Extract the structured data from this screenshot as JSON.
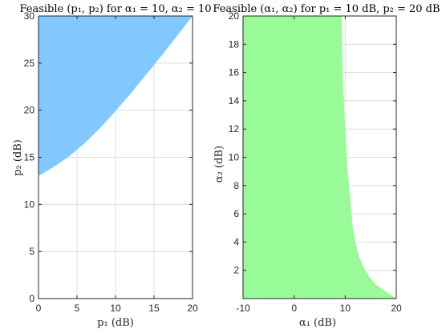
{
  "chart_data": [
    {
      "type": "area",
      "title": "Feasible (p₁, p₂) for α₁ = 10, α₂ = 10",
      "xlabel": "p₁ (dB)",
      "ylabel": "p₂ (dB)",
      "xlim": [
        0,
        20
      ],
      "ylim": [
        0,
        30
      ],
      "xticks": [
        0,
        5,
        10,
        15,
        20
      ],
      "yticks": [
        0,
        5,
        10,
        15,
        20,
        25,
        30
      ],
      "grid": true,
      "fill_color": "#80c8ff",
      "region": "above boundary",
      "boundary": {
        "x": [
          0,
          2,
          4,
          6,
          8,
          10,
          12,
          14,
          16,
          18,
          20
        ],
        "y": [
          13.0,
          14.0,
          15.1,
          16.5,
          18.1,
          19.9,
          21.8,
          23.8,
          25.8,
          27.9,
          30.0
        ]
      }
    },
    {
      "type": "area",
      "title": "Feasible (α₁, α₂) for p₁ = 10 dB, p₂ = 20 dB",
      "xlabel": "α₁ (dB)",
      "ylabel": "α₂ (dB)",
      "xlim": [
        -10,
        20
      ],
      "ylim": [
        0,
        20
      ],
      "xticks": [
        -10,
        0,
        10,
        20
      ],
      "yticks": [
        2,
        4,
        6,
        8,
        10,
        12,
        14,
        16,
        18,
        20
      ],
      "grid": true,
      "fill_color": "#98fb98",
      "region": "left of boundary",
      "boundary": {
        "y": [
          20,
          16,
          12,
          9,
          7,
          5,
          4,
          3,
          2,
          1.5,
          1,
          0.5,
          0
        ],
        "x": [
          9.3,
          9.5,
          10.0,
          10.5,
          11.0,
          11.5,
          12.0,
          12.7,
          13.9,
          14.8,
          16.0,
          18.0,
          20.0
        ]
      }
    }
  ]
}
